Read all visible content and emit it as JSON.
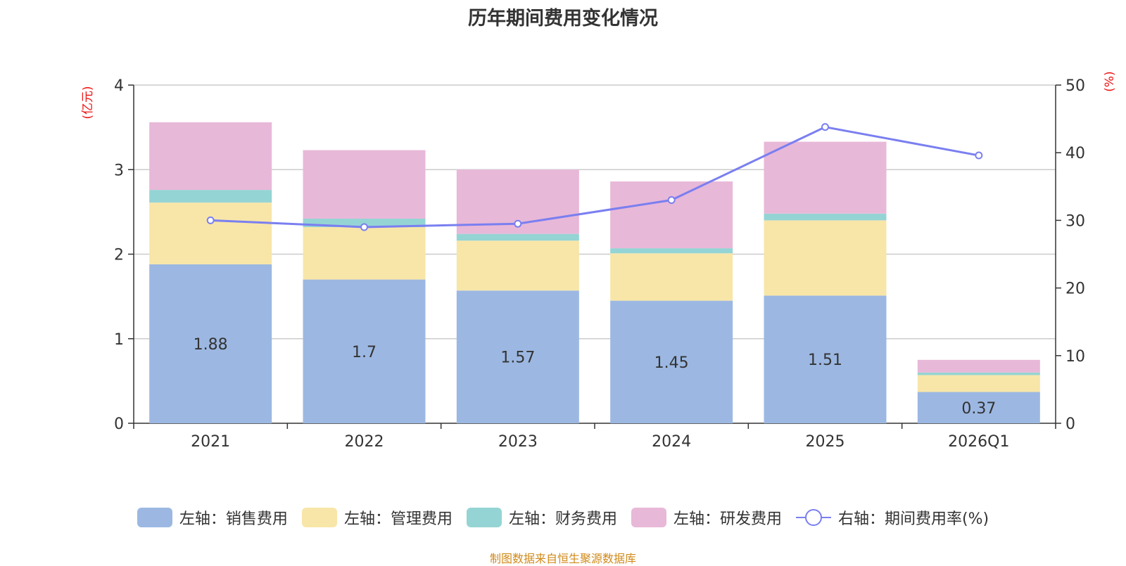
{
  "chart_data": {
    "type": "bar",
    "title": "历年期间费用变化情况",
    "categories": [
      "2021",
      "2022",
      "2023",
      "2024",
      "2025",
      "2026Q1"
    ],
    "left_axis": {
      "unit": "(亿元)",
      "ylim": [
        0,
        4
      ],
      "ticks": [
        "0",
        "1",
        "2",
        "3",
        "4"
      ]
    },
    "right_axis": {
      "unit": "(%)",
      "ylim": [
        0,
        50
      ],
      "ticks": [
        "0",
        "10",
        "20",
        "30",
        "40",
        "50"
      ]
    },
    "series": [
      {
        "name": "左轴：销售费用",
        "type": "bar",
        "color": "#9cb8e2",
        "values": [
          1.88,
          1.7,
          1.57,
          1.45,
          1.51,
          0.37
        ],
        "labels": [
          "1.88",
          "1.7",
          "1.57",
          "1.45",
          "1.51",
          "0.37"
        ]
      },
      {
        "name": "左轴：管理费用",
        "type": "bar",
        "color": "#f8e6a8",
        "values": [
          0.73,
          0.62,
          0.59,
          0.56,
          0.89,
          0.2
        ]
      },
      {
        "name": "左轴：财务费用",
        "type": "bar",
        "color": "#95d4d4",
        "values": [
          0.15,
          0.1,
          0.08,
          0.06,
          0.08,
          0.03
        ]
      },
      {
        "name": "左轴：研发费用",
        "type": "bar",
        "color": "#e8b8d8",
        "values": [
          0.8,
          0.81,
          0.76,
          0.79,
          0.85,
          0.15
        ]
      },
      {
        "name": "右轴：期间费用率(%)",
        "type": "line",
        "color": "#7a7ff0",
        "values": [
          30.0,
          29.0,
          29.5,
          33.0,
          43.8,
          39.6
        ]
      }
    ],
    "source": "制图数据来自恒生聚源数据库"
  }
}
